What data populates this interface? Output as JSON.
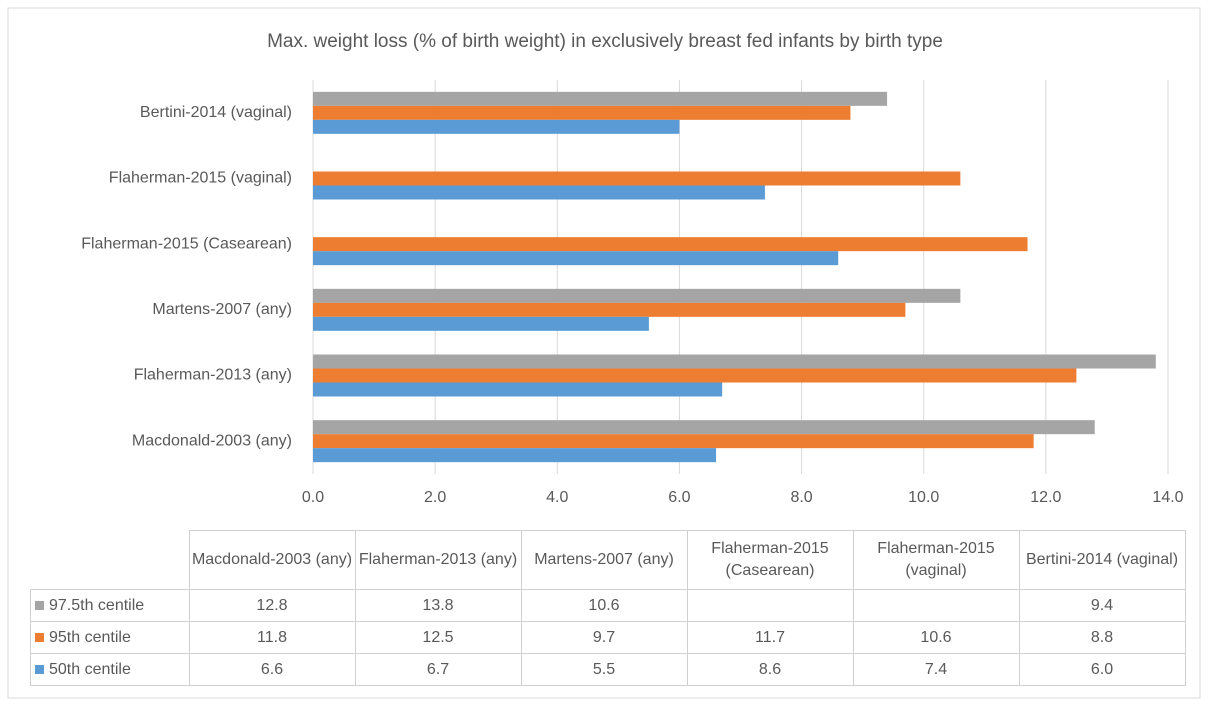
{
  "chart_data": {
    "type": "barh",
    "title": "Max. weight loss (% of birth weight) in exclusively breast fed infants by birth type",
    "categories": [
      "Macdonald-2003 (any)",
      "Flaherman-2013 (any)",
      "Martens-2007 (any)",
      "Flaherman-2015 (Casearean)",
      "Flaherman-2015 (vaginal)",
      "Bertini-2014 (vaginal)"
    ],
    "series": [
      {
        "name": "97.5th centile",
        "color": "#a5a5a5",
        "values": [
          12.8,
          13.8,
          10.6,
          null,
          null,
          9.4
        ],
        "value_labels": [
          "12.8",
          "13.8",
          "10.6",
          null,
          null,
          "9.4"
        ]
      },
      {
        "name": "95th centile",
        "color": "#ed7d31",
        "values": [
          11.8,
          12.5,
          9.7,
          11.7,
          10.6,
          8.8
        ],
        "value_labels": [
          "11.8",
          "12.5",
          "9.7",
          "11.7",
          "10.6",
          "8.8"
        ]
      },
      {
        "name": "50th centile",
        "color": "#5b9bd5",
        "values": [
          6.6,
          6.7,
          5.5,
          8.6,
          7.4,
          6.0
        ],
        "value_labels": [
          "6.6",
          "6.7",
          "5.5",
          "8.6",
          "7.4",
          "6.0"
        ]
      }
    ],
    "xlim": [
      0,
      14
    ],
    "xticks": [
      {
        "value": 0,
        "label": "0.0"
      },
      {
        "value": 2,
        "label": "2.0"
      },
      {
        "value": 4,
        "label": "4.0"
      },
      {
        "value": 6,
        "label": "6.0"
      },
      {
        "value": 8,
        "label": "8.0"
      },
      {
        "value": 10,
        "label": "10.0"
      },
      {
        "value": 12,
        "label": "12.0"
      },
      {
        "value": 14,
        "label": "14.0"
      }
    ],
    "grid": true,
    "data_table": true
  }
}
